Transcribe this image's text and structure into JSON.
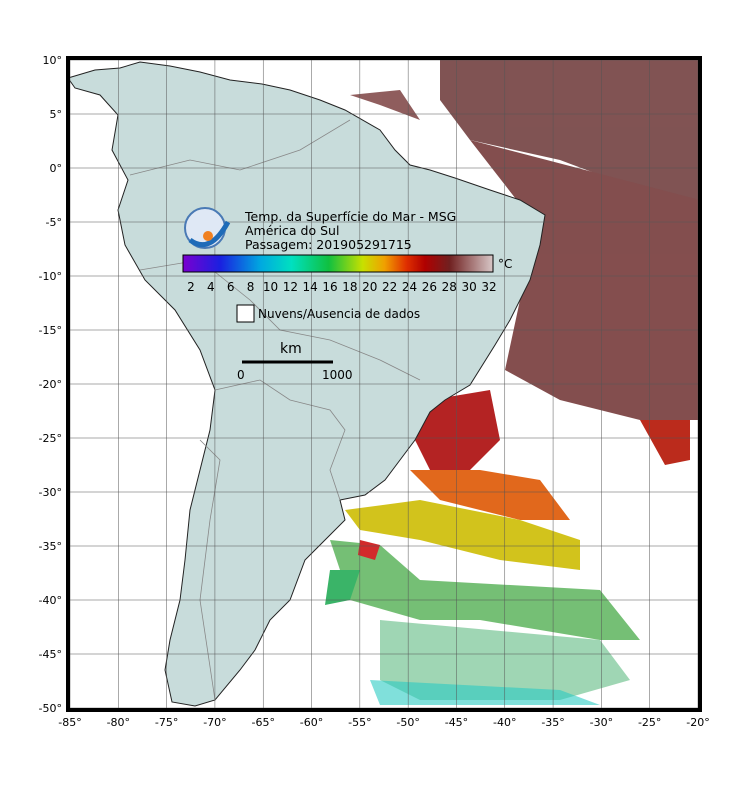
{
  "title": {
    "line1": "Temp. da Superfície do Mar - MSG",
    "line2": "América do Sul",
    "line3": "Passagem: 201905291715"
  },
  "colorbar": {
    "unit": "°C",
    "ticks": [
      "2",
      "4",
      "6",
      "8",
      "10",
      "12",
      "14",
      "16",
      "18",
      "20",
      "22",
      "24",
      "26",
      "28",
      "30",
      "32"
    ]
  },
  "legend": {
    "label": "Nuvens/Ausencia de dados"
  },
  "scale_bar": {
    "unit": "km",
    "start": "0",
    "end": "1000"
  },
  "axes": {
    "lat_labels": [
      "10°",
      "5°",
      "0°",
      "-5°",
      "-10°",
      "-15°",
      "-20°",
      "-25°",
      "-30°",
      "-35°",
      "-40°",
      "-45°",
      "-50°"
    ],
    "lon_labels": [
      "-85°",
      "-80°",
      "-75°",
      "-70°",
      "-65°",
      "-60°",
      "-55°",
      "-50°",
      "-45°",
      "-40°",
      "-35°",
      "-30°",
      "-25°",
      "-20°"
    ]
  }
}
